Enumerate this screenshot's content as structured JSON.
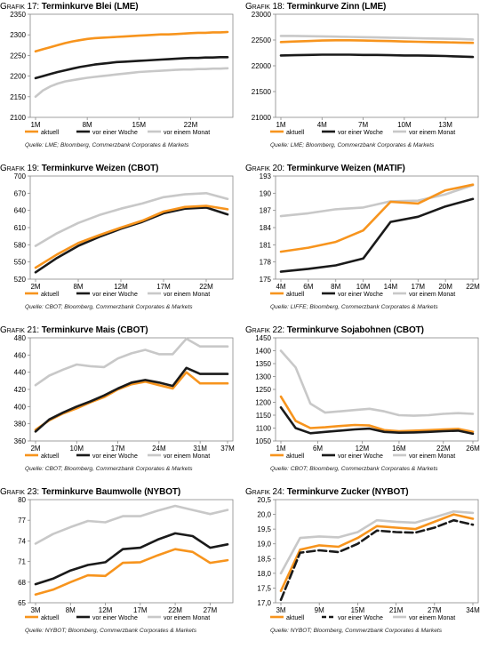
{
  "colors": {
    "aktuell": "#f7941d",
    "woche": "#1a1a1a",
    "monat": "#c8c8c8"
  },
  "legend_labels": [
    "aktuell",
    "vor einer Woche",
    "vor einem Monat"
  ],
  "chart_data": [
    {
      "type": "line",
      "title_prefix": "Grafik",
      "title_num": "17:",
      "title_text": "Terminkurve Blei (LME)",
      "source": "Quelle: LME; Bloomberg, Commerzbank Corporates & Markets",
      "ylim": [
        2100,
        2350
      ],
      "yticks": [
        "2350",
        "2300",
        "2250",
        "2200",
        "2150",
        "2100"
      ],
      "x_ticks": [
        {
          "label": "1M",
          "x": 1
        },
        {
          "label": "8M",
          "x": 8
        },
        {
          "label": "15M",
          "x": 15
        },
        {
          "label": "22M",
          "x": 22
        }
      ],
      "xlim": [
        1,
        27
      ],
      "x": [
        1,
        2,
        3,
        4,
        5,
        6,
        7,
        8,
        9,
        10,
        11,
        12,
        13,
        14,
        15,
        16,
        17,
        18,
        19,
        20,
        21,
        22,
        23,
        24,
        25,
        26,
        27
      ],
      "series": [
        {
          "key": "monat",
          "dashed": false,
          "values": [
            2150,
            2165,
            2175,
            2182,
            2187,
            2190,
            2193,
            2196,
            2198,
            2200,
            2202,
            2204,
            2206,
            2208,
            2210,
            2211,
            2212,
            2213,
            2214,
            2215,
            2216,
            2216,
            2217,
            2217,
            2218,
            2218,
            2219
          ]
        },
        {
          "key": "woche",
          "dashed": false,
          "values": [
            2195,
            2200,
            2205,
            2210,
            2214,
            2218,
            2222,
            2225,
            2228,
            2230,
            2232,
            2234,
            2235,
            2236,
            2237,
            2238,
            2239,
            2240,
            2241,
            2242,
            2243,
            2244,
            2244,
            2245,
            2245,
            2246,
            2246
          ]
        },
        {
          "key": "aktuell",
          "dashed": false,
          "values": [
            2260,
            2265,
            2270,
            2275,
            2280,
            2284,
            2287,
            2290,
            2292,
            2293,
            2294,
            2295,
            2296,
            2297,
            2298,
            2299,
            2300,
            2301,
            2301,
            2302,
            2303,
            2304,
            2305,
            2305,
            2306,
            2306,
            2307
          ]
        }
      ]
    },
    {
      "type": "line",
      "title_prefix": "Grafik",
      "title_num": "18:",
      "title_text": "Terminkurve Zinn (LME)",
      "source": "Quelle: LME; Bloomberg, Commerzbank Corporates & Markets",
      "ylim": [
        21000,
        23000
      ],
      "yticks": [
        "23000",
        "22500",
        "22000",
        "21500",
        "21000"
      ],
      "x_ticks": [
        {
          "label": "1M",
          "x": 1
        },
        {
          "label": "4M",
          "x": 4
        },
        {
          "label": "7M",
          "x": 7
        },
        {
          "label": "10M",
          "x": 10
        },
        {
          "label": "13M",
          "x": 13
        }
      ],
      "xlim": [
        1,
        15
      ],
      "x": [
        1,
        2,
        3,
        4,
        5,
        6,
        7,
        8,
        9,
        10,
        11,
        12,
        13,
        14,
        15
      ],
      "series": [
        {
          "key": "monat",
          "dashed": false,
          "values": [
            22580,
            22580,
            22575,
            22570,
            22565,
            22560,
            22555,
            22550,
            22545,
            22540,
            22535,
            22530,
            22525,
            22520,
            22510
          ]
        },
        {
          "key": "aktuell",
          "dashed": false,
          "values": [
            22460,
            22470,
            22480,
            22490,
            22495,
            22495,
            22490,
            22485,
            22480,
            22470,
            22465,
            22460,
            22455,
            22450,
            22445
          ]
        },
        {
          "key": "woche",
          "dashed": false,
          "values": [
            22200,
            22205,
            22210,
            22215,
            22215,
            22215,
            22210,
            22210,
            22205,
            22200,
            22200,
            22195,
            22190,
            22180,
            22170
          ]
        }
      ]
    },
    {
      "type": "line",
      "title_prefix": "Grafik",
      "title_num": "19:",
      "title_text": "Terminkurve Weizen (CBOT)",
      "source": "Quelle: CBOT; Bloomberg, Commerzbank Corporates & Markets",
      "ylim": [
        520,
        700
      ],
      "yticks": [
        "700",
        "670",
        "640",
        "610",
        "580",
        "550",
        "520"
      ],
      "x_ticks": [
        {
          "label": "2M",
          "x": 0
        },
        {
          "label": "8M",
          "x": 2
        },
        {
          "label": "12M",
          "x": 4
        },
        {
          "label": "17M",
          "x": 6
        },
        {
          "label": "22M",
          "x": 8
        }
      ],
      "xlim": [
        0,
        9
      ],
      "x": [
        0,
        1,
        2,
        3,
        4,
        5,
        6,
        7,
        8,
        9
      ],
      "series": [
        {
          "key": "monat",
          "dashed": false,
          "values": [
            578,
            600,
            618,
            632,
            643,
            652,
            663,
            668,
            670,
            660
          ]
        },
        {
          "key": "woche",
          "dashed": false,
          "values": [
            532,
            557,
            578,
            594,
            608,
            620,
            635,
            643,
            645,
            633
          ]
        },
        {
          "key": "aktuell",
          "dashed": false,
          "values": [
            540,
            563,
            583,
            597,
            610,
            622,
            638,
            646,
            648,
            642
          ]
        }
      ]
    },
    {
      "type": "line",
      "title_prefix": "Grafik",
      "title_num": "20:",
      "title_text": "Terminkurve Weizen (MATIF)",
      "source": "Quelle: LIFFE; Bloomberg, Commerzbank Corporates & Markets",
      "ylim": [
        175,
        193
      ],
      "yticks": [
        "193",
        "190",
        "187",
        "184",
        "181",
        "178",
        "175"
      ],
      "x_ticks": [
        {
          "label": "4M",
          "x": 0
        },
        {
          "label": "6M",
          "x": 1
        },
        {
          "label": "8M",
          "x": 2
        },
        {
          "label": "10M",
          "x": 3
        },
        {
          "label": "14M",
          "x": 4
        },
        {
          "label": "17M",
          "x": 5
        },
        {
          "label": "20M",
          "x": 6
        },
        {
          "label": "22M",
          "x": 7
        }
      ],
      "xlim": [
        0,
        7
      ],
      "x": [
        0,
        1,
        2,
        3,
        4,
        5,
        6,
        7
      ],
      "series": [
        {
          "key": "monat",
          "dashed": false,
          "values": [
            186,
            186.5,
            187.2,
            187.5,
            188.6,
            188.7,
            189.8,
            191.4
          ]
        },
        {
          "key": "aktuell",
          "dashed": false,
          "values": [
            179.8,
            180.5,
            181.5,
            183.5,
            188.5,
            188.2,
            190.5,
            191.5
          ]
        },
        {
          "key": "woche",
          "dashed": false,
          "values": [
            176.3,
            176.8,
            177.4,
            178.6,
            185.0,
            185.9,
            187.7,
            189
          ]
        }
      ]
    },
    {
      "type": "line",
      "title_prefix": "Grafik",
      "title_num": "21:",
      "title_text": "Terminkurve Mais (CBOT)",
      "source": "Quelle: CBOT; Bloomberg, Commerzbank Corporates & Markets",
      "ylim": [
        360,
        480
      ],
      "yticks": [
        "480",
        "460",
        "440",
        "420",
        "400",
        "380",
        "360"
      ],
      "x_ticks": [
        {
          "label": "2M",
          "x": 0
        },
        {
          "label": "10M",
          "x": 3
        },
        {
          "label": "17M",
          "x": 6
        },
        {
          "label": "24M",
          "x": 9
        },
        {
          "label": "31M",
          "x": 12
        },
        {
          "label": "37M",
          "x": 14
        }
      ],
      "xlim": [
        0,
        14
      ],
      "x": [
        0,
        1,
        2,
        3,
        4,
        5,
        6,
        7,
        8,
        9,
        10,
        11,
        12,
        13,
        14
      ],
      "series": [
        {
          "key": "monat",
          "dashed": false,
          "values": [
            425,
            436,
            443,
            449,
            447,
            446,
            456,
            462,
            466,
            461,
            461,
            479,
            470,
            470,
            470
          ]
        },
        {
          "key": "aktuell",
          "dashed": false,
          "values": [
            373,
            384,
            392,
            398,
            405,
            411,
            420,
            426,
            429,
            425,
            421,
            440,
            427,
            427,
            427
          ]
        },
        {
          "key": "woche",
          "dashed": false,
          "values": [
            371,
            385,
            393,
            400,
            406,
            413,
            421,
            428,
            431,
            428,
            424,
            445,
            438,
            438,
            438
          ]
        }
      ]
    },
    {
      "type": "line",
      "title_prefix": "Grafik",
      "title_num": "22:",
      "title_text": "Terminkurve Sojabohnen (CBOT)",
      "source": "Quelle: CBOT; Bloomberg, Commerzbank Corporates & Markets",
      "ylim": [
        1050,
        1450
      ],
      "yticks": [
        "1450",
        "1400",
        "1350",
        "1300",
        "1250",
        "1200",
        "1150",
        "1100",
        "1050"
      ],
      "x_ticks": [
        {
          "label": "1M",
          "x": 0
        },
        {
          "label": "6M",
          "x": 2.5
        },
        {
          "label": "12M",
          "x": 5.5
        },
        {
          "label": "16M",
          "x": 8
        },
        {
          "label": "22M",
          "x": 11
        },
        {
          "label": "26M",
          "x": 13
        }
      ],
      "xlim": [
        0,
        13
      ],
      "x": [
        0,
        1,
        2,
        3,
        4,
        5,
        6,
        7,
        8,
        9,
        10,
        11,
        12,
        13
      ],
      "series": [
        {
          "key": "monat",
          "dashed": false,
          "values": [
            1400,
            1335,
            1195,
            1160,
            1165,
            1170,
            1175,
            1165,
            1150,
            1148,
            1150,
            1155,
            1158,
            1155
          ]
        },
        {
          "key": "aktuell",
          "dashed": false,
          "values": [
            1222,
            1128,
            1100,
            1103,
            1108,
            1112,
            1110,
            1092,
            1088,
            1090,
            1092,
            1095,
            1097,
            1085
          ]
        },
        {
          "key": "woche",
          "dashed": false,
          "values": [
            1180,
            1100,
            1080,
            1085,
            1090,
            1095,
            1098,
            1085,
            1082,
            1083,
            1085,
            1088,
            1090,
            1078
          ]
        }
      ]
    },
    {
      "type": "line",
      "title_prefix": "Grafik",
      "title_num": "23:",
      "title_text": "Terminkurve Baumwolle (NYBOT)",
      "source": "Quelle: NYBOT; Bloomberg, Commerzbank Corporates & Markets",
      "ylim": [
        65,
        80
      ],
      "yticks": [
        "80",
        "77",
        "74",
        "71",
        "68",
        "65"
      ],
      "x_ticks": [
        {
          "label": "3M",
          "x": 0
        },
        {
          "label": "8M",
          "x": 2
        },
        {
          "label": "12M",
          "x": 4
        },
        {
          "label": "17M",
          "x": 6
        },
        {
          "label": "22M",
          "x": 8
        },
        {
          "label": "27M",
          "x": 10
        }
      ],
      "xlim": [
        0,
        11
      ],
      "x": [
        0,
        1,
        2,
        3,
        4,
        5,
        6,
        7,
        8,
        9,
        10,
        11
      ],
      "series": [
        {
          "key": "monat",
          "dashed": false,
          "values": [
            73.6,
            75.0,
            76.0,
            76.9,
            76.7,
            77.6,
            77.6,
            78.4,
            79.1,
            78.5,
            77.9,
            78.5
          ]
        },
        {
          "key": "woche",
          "dashed": false,
          "values": [
            67.7,
            68.5,
            69.7,
            70.5,
            70.9,
            72.8,
            73.0,
            74.2,
            75.1,
            74.7,
            73.0,
            73.5
          ]
        },
        {
          "key": "aktuell",
          "dashed": false,
          "values": [
            66.2,
            66.9,
            68.0,
            69.0,
            68.9,
            70.8,
            70.9,
            71.9,
            72.8,
            72.4,
            70.8,
            71.2
          ]
        }
      ]
    },
    {
      "type": "line",
      "title_prefix": "Grafik",
      "title_num": "24:",
      "title_text": "Terminkurve Zucker (NYBOT)",
      "source": "Quelle: NYBOT; Bloomberg, Commerzbank Corporates & Markets",
      "ylim": [
        17.0,
        20.5
      ],
      "yticks": [
        "20,5",
        "20,0",
        "19,5",
        "19,0",
        "18,5",
        "18,0",
        "17,5",
        "17,0"
      ],
      "x_ticks": [
        {
          "label": "3M",
          "x": 0
        },
        {
          "label": "9M",
          "x": 2
        },
        {
          "label": "15M",
          "x": 4
        },
        {
          "label": "21M",
          "x": 6
        },
        {
          "label": "27M",
          "x": 8
        },
        {
          "label": "34M",
          "x": 10
        }
      ],
      "xlim": [
        0,
        10
      ],
      "x": [
        0,
        1,
        2,
        3,
        4,
        5,
        6,
        7,
        8,
        9,
        10
      ],
      "series": [
        {
          "key": "monat",
          "dashed": false,
          "values": [
            18.0,
            19.2,
            19.25,
            19.22,
            19.4,
            19.8,
            19.75,
            19.72,
            19.9,
            20.1,
            20.05
          ]
        },
        {
          "key": "aktuell",
          "dashed": false,
          "values": [
            17.4,
            18.8,
            18.95,
            18.9,
            19.2,
            19.6,
            19.55,
            19.5,
            19.75,
            20.0,
            19.85
          ]
        },
        {
          "key": "woche",
          "dashed": true,
          "values": [
            17.1,
            18.7,
            18.78,
            18.72,
            19.0,
            19.45,
            19.4,
            19.38,
            19.55,
            19.8,
            19.65
          ]
        }
      ]
    }
  ]
}
